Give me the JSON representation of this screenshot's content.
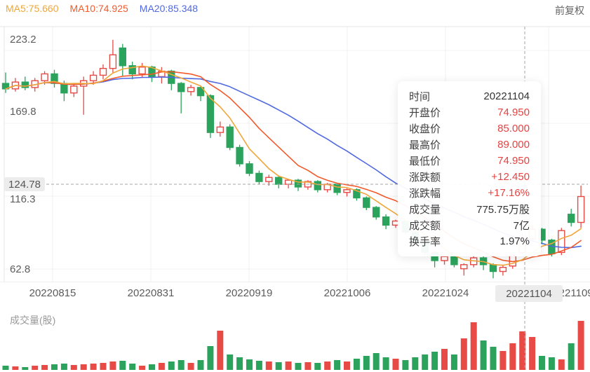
{
  "header": {
    "ma5_label": "MA5:75.660",
    "ma10_label": "MA10:74.925",
    "ma20_label": "MA20:85.348",
    "adjust_label": "前复权"
  },
  "volume_pane": {
    "title": "成交量(股)"
  },
  "tooltip": {
    "rows": [
      {
        "label": "时间",
        "value": "20221104",
        "red": false
      },
      {
        "label": "开盘价",
        "value": "74.950",
        "red": true
      },
      {
        "label": "收盘价",
        "value": "85.000",
        "red": true
      },
      {
        "label": "最高价",
        "value": "89.000",
        "red": true
      },
      {
        "label": "最低价",
        "value": "74.950",
        "red": true
      },
      {
        "label": "涨跌额",
        "value": "+12.450",
        "red": true
      },
      {
        "label": "涨跌幅",
        "value": "+17.16%",
        "red": true
      },
      {
        "label": "成交量",
        "value": "775.75万股",
        "red": false
      },
      {
        "label": "成交额",
        "value": "7亿",
        "red": false
      },
      {
        "label": "换手率",
        "value": "1.97%",
        "red": false
      }
    ]
  },
  "chart_data": {
    "type": "candlestick",
    "title": "",
    "x_axis": {
      "labels": [
        "20220815",
        "20220831",
        "20220919",
        "20221006",
        "20221024",
        "20221109"
      ]
    },
    "y_axis": {
      "labels": [
        "223.2",
        "169.8",
        "116.3",
        "62.8"
      ],
      "prices": [
        223.2,
        169.8,
        116.3,
        62.8
      ]
    },
    "crosshair": {
      "date": "20221104",
      "price": "124.78"
    },
    "colors": {
      "up": "#e84a45",
      "down": "#2ba35c",
      "ma5": "#f0a63a",
      "ma10": "#f25a2b",
      "ma20": "#5069e1",
      "grid": "#f0f0f0",
      "border": "#e6e6e6",
      "crosshair": "#a6a6a6"
    },
    "legend": [
      "MA5",
      "MA10",
      "MA20"
    ],
    "columns": [
      "open",
      "high",
      "low",
      "close",
      "volume"
    ],
    "candles": [
      [
        199,
        207,
        192,
        195,
        6
      ],
      [
        195,
        203,
        193,
        200,
        5
      ],
      [
        200,
        204,
        194,
        196,
        4
      ],
      [
        196,
        203,
        193,
        201,
        6
      ],
      [
        201,
        208,
        198,
        206,
        7
      ],
      [
        206,
        209,
        196,
        199,
        8
      ],
      [
        199,
        201,
        186,
        192,
        9
      ],
      [
        192,
        199,
        189,
        197,
        7
      ],
      [
        197,
        204,
        176,
        201,
        8
      ],
      [
        201,
        208,
        198,
        205,
        9
      ],
      [
        205,
        213,
        202,
        210,
        10
      ],
      [
        210,
        231,
        207,
        220,
        12
      ],
      [
        225,
        228,
        204,
        212,
        13
      ],
      [
        212,
        215,
        202,
        206,
        9
      ],
      [
        206,
        214,
        203,
        211,
        6
      ],
      [
        211,
        212,
        200,
        204,
        8
      ],
      [
        204,
        211,
        199,
        208,
        10
      ],
      [
        208,
        209,
        194,
        199,
        12
      ],
      [
        199,
        200,
        177,
        193,
        14
      ],
      [
        193,
        198,
        190,
        196,
        10
      ],
      [
        196,
        197,
        186,
        190,
        14
      ],
      [
        190,
        191,
        159,
        163,
        34
      ],
      [
        163,
        171,
        160,
        167,
        56
      ],
      [
        167,
        169,
        150,
        152,
        22
      ],
      [
        152,
        154,
        138,
        140,
        18
      ],
      [
        140,
        142,
        131,
        133,
        15
      ],
      [
        133,
        135,
        125,
        127,
        13
      ],
      [
        127,
        132,
        124,
        130,
        12
      ],
      [
        130,
        131,
        122,
        125,
        11
      ],
      [
        125,
        129,
        122,
        128,
        12
      ],
      [
        128,
        129,
        120,
        123,
        10
      ],
      [
        123,
        128,
        121,
        127,
        11
      ],
      [
        127,
        128,
        119,
        121,
        10
      ],
      [
        121,
        126,
        119,
        125,
        12
      ],
      [
        125,
        126,
        117,
        119,
        14
      ],
      [
        119,
        122,
        116,
        121,
        12
      ],
      [
        121,
        122,
        113,
        115,
        16
      ],
      [
        115,
        116,
        106,
        108,
        20
      ],
      [
        108,
        109,
        99,
        101,
        24
      ],
      [
        101,
        103,
        92,
        95,
        18
      ],
      [
        95,
        99,
        93,
        98,
        16
      ],
      [
        98,
        99,
        88,
        90,
        14
      ],
      [
        90,
        91,
        80,
        82,
        18
      ],
      [
        82,
        83,
        73,
        75,
        22
      ],
      [
        75,
        76,
        64,
        69,
        26
      ],
      [
        69,
        73,
        66,
        72,
        30
      ],
      [
        72,
        73,
        64,
        66,
        22
      ],
      [
        63,
        67,
        58,
        66,
        45
      ],
      [
        66,
        73,
        64,
        71,
        68
      ],
      [
        71,
        72,
        62,
        66,
        42
      ],
      [
        66,
        67,
        56,
        61,
        33
      ],
      [
        61,
        66,
        58,
        64,
        27
      ],
      [
        65,
        74,
        63,
        72.55,
        38
      ],
      [
        74.95,
        89,
        74.95,
        85,
        55
      ],
      [
        85,
        95,
        84,
        92,
        47
      ],
      [
        92,
        93,
        81,
        84,
        20
      ],
      [
        84,
        85,
        72,
        74,
        18
      ],
      [
        75,
        93,
        73,
        91,
        15
      ],
      [
        103,
        107,
        94,
        97,
        38
      ],
      [
        97,
        124,
        93,
        116,
        70
      ]
    ]
  }
}
